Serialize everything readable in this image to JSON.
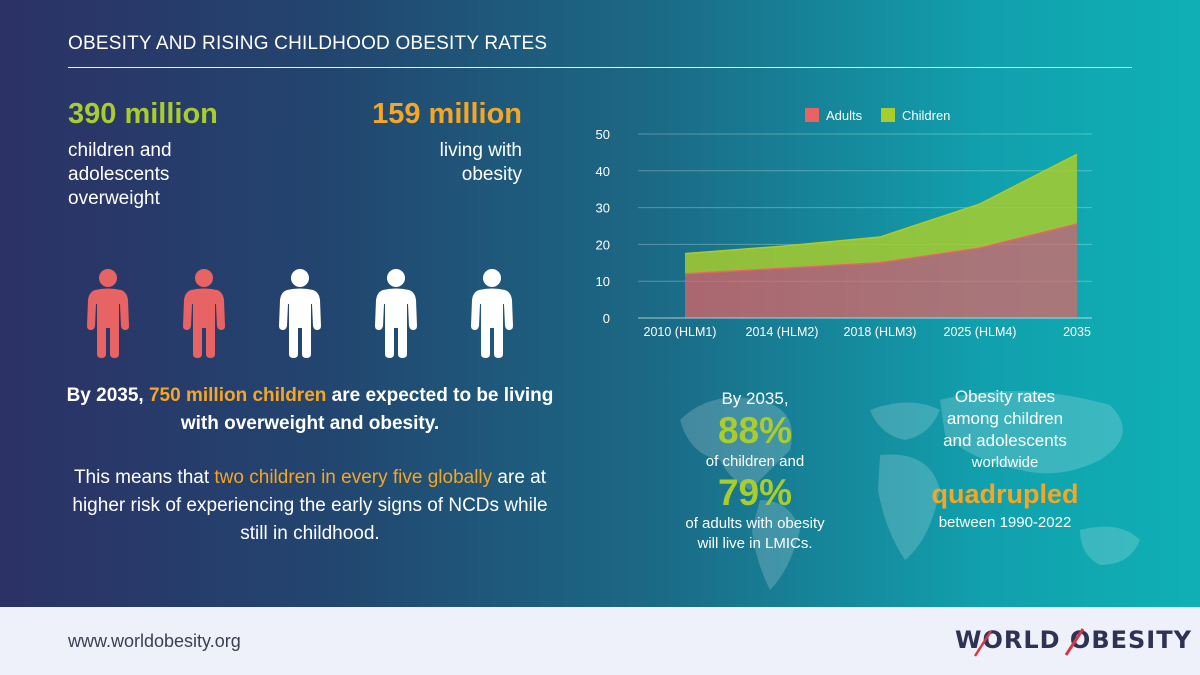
{
  "header": {
    "title": "OBESITY AND RISING CHILDHOOD OBESITY RATES"
  },
  "stats": {
    "left": {
      "number": "390 million",
      "text_lines": [
        "children and",
        "adolescents",
        "overweight"
      ]
    },
    "right": {
      "number": "159 million",
      "text_lines": [
        "living with",
        "obesity"
      ]
    }
  },
  "figures": {
    "total": 5,
    "highlighted": 2,
    "highlight_color": "#e86464",
    "default_color": "#ffffff"
  },
  "message": {
    "line1_pre": "By 2035, ",
    "line1_highlight": "750 million children",
    "line1_post": " are expected to be living with overweight and obesity.",
    "line2_pre": "This means that ",
    "line2_highlight": "two children in every five globally",
    "line2_post": " are at higher risk of experiencing the early signs of NCDs while still in childhood."
  },
  "chart_data": {
    "type": "area",
    "stacked": true,
    "categories": [
      "2010 (HLM1)",
      "2014 (HLM2)",
      "2018 (HLM3)",
      "2025 (HLM4)",
      "2035"
    ],
    "series": [
      {
        "name": "Adults",
        "values": [
          12,
          13.5,
          15,
          19,
          25.5
        ],
        "color": "#e86464"
      },
      {
        "name": "Children",
        "values": [
          5.5,
          6,
          7,
          12,
          19
        ],
        "color": "#a8cd2d"
      }
    ],
    "ylim": [
      0,
      50
    ],
    "yticks": [
      0,
      10,
      20,
      30,
      40,
      50
    ],
    "grid": true,
    "legend": "top-center"
  },
  "lmic": {
    "intro": "By 2035,",
    "pct_children": "88%",
    "of_children": "of children and",
    "pct_adults": "79%",
    "of_adults_1": "of adults with obesity",
    "of_adults_2": "will live in LMICs."
  },
  "quadrupled": {
    "lines": [
      "Obesity rates",
      "among children",
      "and adolescents"
    ],
    "worldwide": "worldwide",
    "big": "quadrupled",
    "period": "between 1990-2022"
  },
  "footer": {
    "url": "www.worldobesity.org",
    "logo_text": "WORLD OBESITY",
    "logo_accent_color": "#d6384a"
  }
}
